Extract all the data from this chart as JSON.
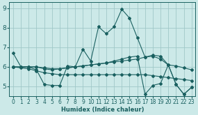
{
  "title": "",
  "xlabel": "Humidex (Indice chaleur)",
  "xlim": [
    -0.5,
    23.5
  ],
  "ylim": [
    4.5,
    9.3
  ],
  "yticks": [
    5,
    6,
    7,
    8,
    9
  ],
  "xticks": [
    0,
    1,
    2,
    3,
    4,
    5,
    6,
    7,
    8,
    9,
    10,
    11,
    12,
    13,
    14,
    15,
    16,
    17,
    18,
    19,
    20,
    21,
    22,
    23
  ],
  "bg_color": "#cce9e8",
  "grid_color": "#a0c8c8",
  "line_color": "#1a6060",
  "lines": [
    {
      "x": [
        0,
        1,
        2,
        3,
        4,
        5,
        6,
        7,
        8,
        9,
        10,
        11,
        12,
        13,
        14,
        15,
        16,
        17,
        18,
        19,
        20,
        21,
        22,
        23
      ],
      "y": [
        6.7,
        6.0,
        6.0,
        5.85,
        5.1,
        5.05,
        5.05,
        6.05,
        6.0,
        6.9,
        6.3,
        8.05,
        7.7,
        8.05,
        8.95,
        8.5,
        7.5,
        6.5,
        6.55,
        6.4,
        6.1,
        5.1,
        4.6,
        4.95
      ]
    },
    {
      "x": [
        0,
        1,
        2,
        3,
        4,
        5,
        6,
        7,
        8,
        9,
        10,
        11,
        12,
        13,
        14,
        15,
        16,
        17,
        18,
        19,
        20,
        21,
        22,
        23
      ],
      "y": [
        6.0,
        6.0,
        6.0,
        6.0,
        5.95,
        5.9,
        5.9,
        5.95,
        6.0,
        6.05,
        6.1,
        6.15,
        6.2,
        6.25,
        6.3,
        6.35,
        6.4,
        6.5,
        6.6,
        6.55,
        6.1,
        6.05,
        5.95,
        5.85
      ]
    },
    {
      "x": [
        0,
        1,
        2,
        3,
        4,
        5,
        6,
        7,
        8,
        9,
        10,
        11,
        12,
        13,
        14,
        15,
        16,
        17,
        18,
        19,
        20,
        21,
        22,
        23
      ],
      "y": [
        6.0,
        6.0,
        6.0,
        6.0,
        5.9,
        5.85,
        5.9,
        5.95,
        6.0,
        6.05,
        6.1,
        6.15,
        6.2,
        6.3,
        6.4,
        6.5,
        6.55,
        4.6,
        5.05,
        5.15,
        6.1,
        5.1,
        4.6,
        4.95
      ]
    },
    {
      "x": [
        0,
        1,
        2,
        3,
        4,
        5,
        6,
        7,
        8,
        9,
        10,
        11,
        12,
        13,
        14,
        15,
        16,
        17,
        18,
        19,
        20,
        21,
        22,
        23
      ],
      "y": [
        6.0,
        5.95,
        5.9,
        5.8,
        5.7,
        5.65,
        5.6,
        5.6,
        5.6,
        5.6,
        5.6,
        5.6,
        5.6,
        5.6,
        5.6,
        5.6,
        5.6,
        5.6,
        5.55,
        5.5,
        5.45,
        5.4,
        5.35,
        5.3
      ]
    }
  ]
}
